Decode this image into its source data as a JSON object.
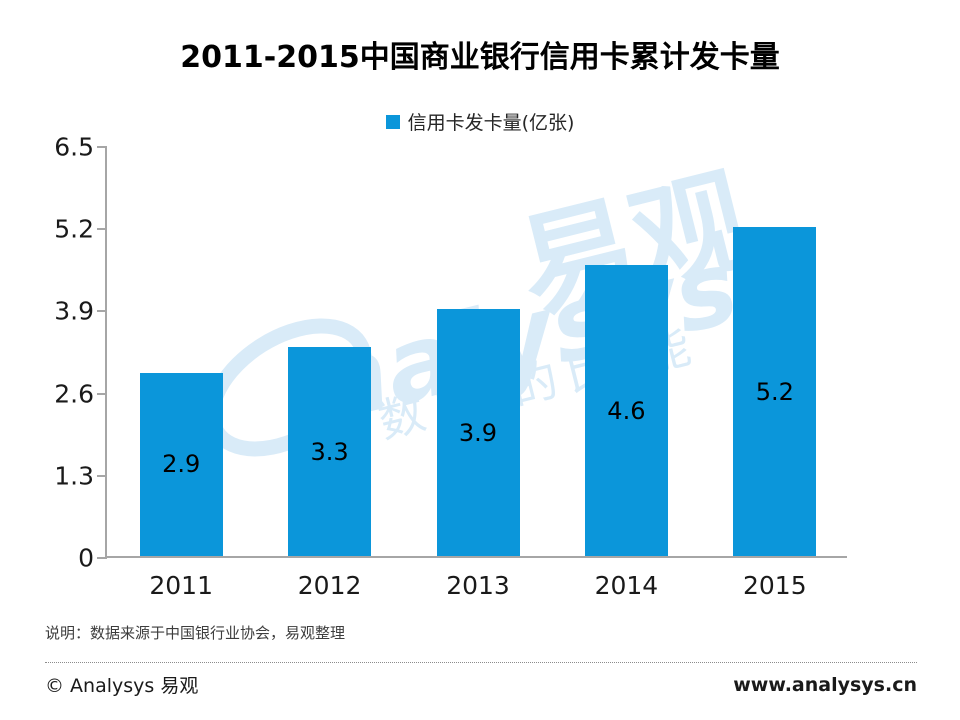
{
  "title": "2011-2015中国商业银行信用卡累计发卡量",
  "legend": {
    "label": "信用卡发卡量(亿张)",
    "swatch_color": "#0b96da"
  },
  "chart_data": {
    "type": "bar",
    "title": "2011-2015中国商业银行信用卡累计发卡量",
    "categories": [
      "2011",
      "2012",
      "2013",
      "2014",
      "2015"
    ],
    "series": [
      {
        "name": "信用卡发卡量(亿张)",
        "values": [
          2.9,
          3.3,
          3.9,
          4.6,
          5.2
        ]
      }
    ],
    "value_labels": [
      "2.9",
      "3.3",
      "3.9",
      "4.6",
      "5.2"
    ],
    "ylim": [
      0,
      6.5
    ],
    "yticks": [
      {
        "value": 0,
        "label": "0"
      },
      {
        "value": 1.3,
        "label": "1.3"
      },
      {
        "value": 2.6,
        "label": "2.6"
      },
      {
        "value": 3.9,
        "label": "3.9"
      },
      {
        "value": 5.2,
        "label": "5.2"
      },
      {
        "value": 6.5,
        "label": "6.5"
      }
    ],
    "bar_color": "#0b96da",
    "axis_color": "#a6a6a6",
    "grid": false,
    "legend_position": "top-center",
    "value_label_position": "inside-center"
  },
  "watermark": {
    "brand_latin": "nalysys",
    "brand_cn": "易观",
    "tagline_fragments": "数成  的比  能",
    "color": "#d9ebf8"
  },
  "note": "说明：数据来源于中国银行业协会，易观整理",
  "footer": {
    "copyright": "© Analysys 易观",
    "website": "www.analysys.cn"
  }
}
